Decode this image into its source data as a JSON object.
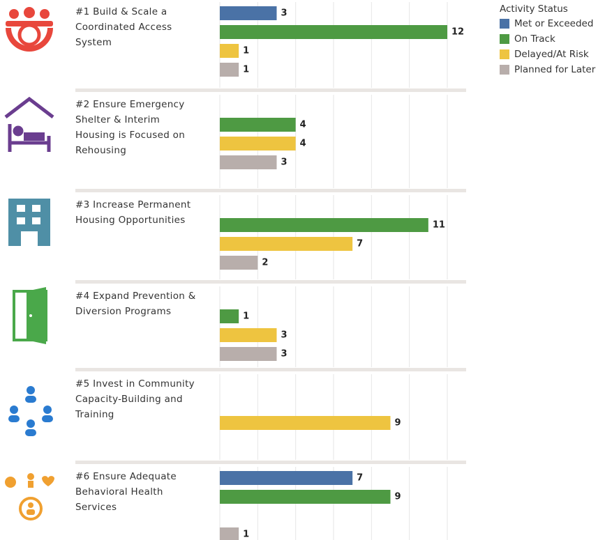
{
  "legend": {
    "title": "Activity Status",
    "items": [
      {
        "name": "Met or Exceeded",
        "color": "#4a72a6"
      },
      {
        "name": "On Track",
        "color": "#4e9a43"
      },
      {
        "name": "Delayed/At Risk",
        "color": "#eec440"
      },
      {
        "name": "Planned for Later",
        "color": "#b8aeab"
      }
    ]
  },
  "chart_data": [
    {
      "type": "hbar",
      "title": "#1 Build & Scale a Coordinated Access System",
      "values": [
        3,
        12,
        1,
        1
      ],
      "xlim": [
        0,
        13
      ],
      "xticks": [
        0,
        2,
        4,
        6,
        8,
        10,
        12
      ],
      "grid": true
    },
    {
      "type": "hbar",
      "title": "#2 Ensure Emergency Shelter & Interim Housing is Focused on Rehousing",
      "values": [
        null,
        4,
        4,
        3
      ],
      "xlim": [
        0,
        13
      ],
      "xticks": [
        0,
        2,
        4,
        6,
        8,
        10,
        12
      ],
      "grid": true
    },
    {
      "type": "hbar",
      "title": "#3 Increase Permanent Housing Opportunities",
      "values": [
        null,
        11,
        7,
        2
      ],
      "xlim": [
        0,
        13
      ],
      "xticks": [
        0,
        2,
        4,
        6,
        8,
        10,
        12
      ],
      "grid": true
    },
    {
      "type": "hbar",
      "title": "#4 Expand Prevention & Diversion Programs",
      "values": [
        null,
        1,
        3,
        3
      ],
      "xlim": [
        0,
        13
      ],
      "xticks": [
        0,
        2,
        4,
        6,
        8,
        10,
        12
      ],
      "grid": true
    },
    {
      "type": "hbar",
      "title": "#5 Invest in Community Capacity-Building and Training",
      "values": [
        null,
        null,
        9,
        null
      ],
      "xlim": [
        0,
        13
      ],
      "xticks": [
        0,
        2,
        4,
        6,
        8,
        10,
        12
      ],
      "grid": true
    },
    {
      "type": "hbar",
      "title": "#6 Ensure Adequate Behavioral Health Services",
      "values": [
        7,
        9,
        null,
        1
      ],
      "xlim": [
        0,
        13
      ],
      "xticks": [
        0,
        2,
        4,
        6,
        8,
        10,
        12
      ],
      "grid": true
    }
  ]
}
